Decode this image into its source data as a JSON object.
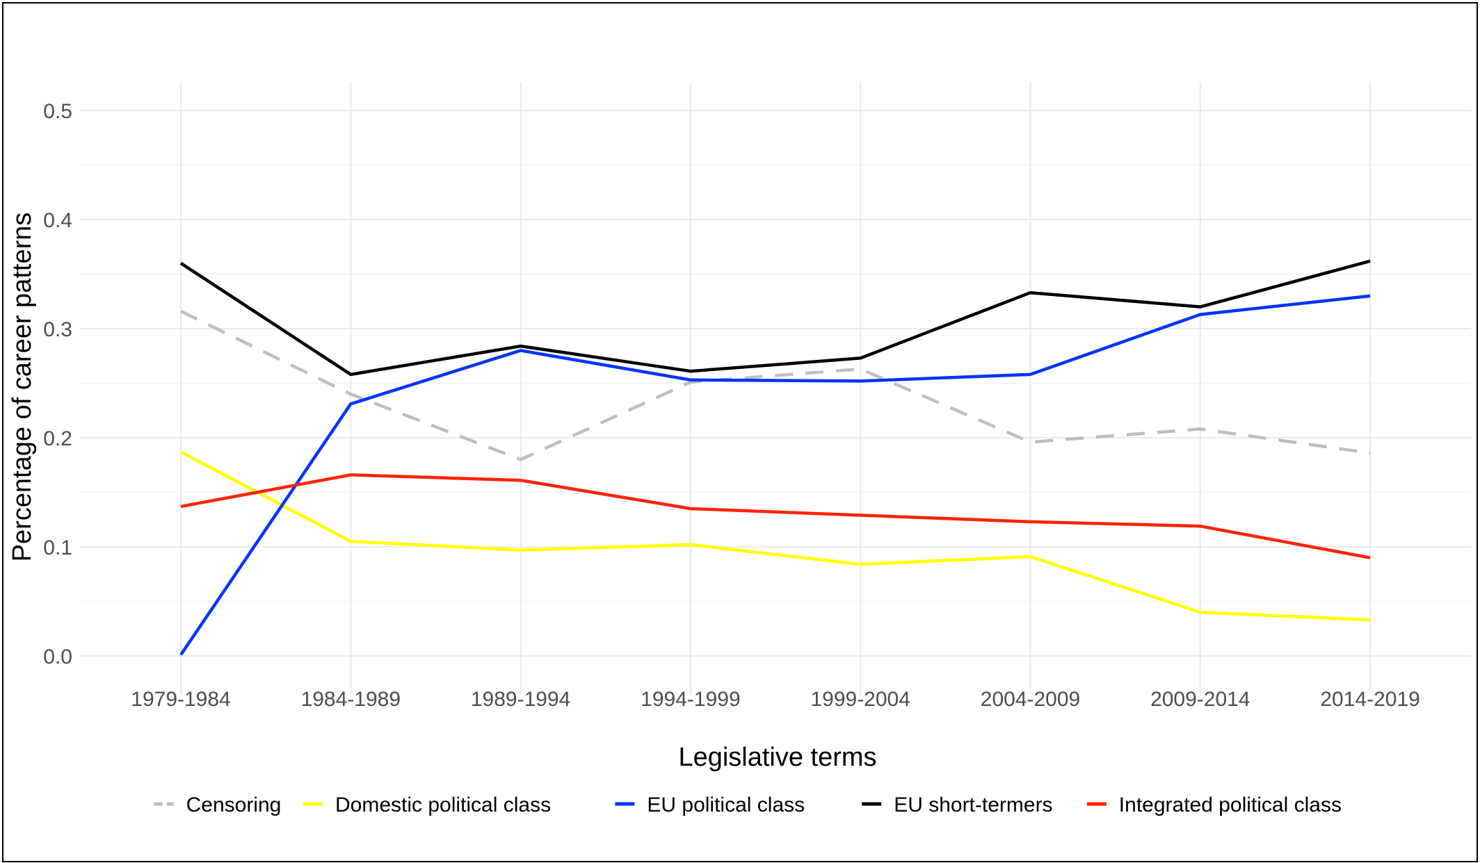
{
  "chart_data": {
    "type": "line",
    "title": "",
    "xlabel": "Legislative terms",
    "ylabel": "Percentage of career patterns",
    "categories": [
      "1979-1984",
      "1984-1989",
      "1989-1994",
      "1994-1999",
      "1999-2004",
      "2004-2009",
      "2009-2014",
      "2014-2019"
    ],
    "ylim": [
      0,
      0.5
    ],
    "yticks": [
      "0.0",
      "0.1",
      "0.2",
      "0.3",
      "0.4",
      "0.5"
    ],
    "grid": true,
    "legend_position": "bottom",
    "series": [
      {
        "name": "Censoring",
        "color": "#bebebe",
        "dashed": true,
        "values": [
          0.316,
          0.24,
          0.18,
          0.251,
          0.263,
          0.196,
          0.208,
          0.186
        ]
      },
      {
        "name": "Domestic political class",
        "color": "#ffff00",
        "dashed": false,
        "values": [
          0.187,
          0.105,
          0.097,
          0.102,
          0.084,
          0.091,
          0.04,
          0.033
        ]
      },
      {
        "name": "EU political class",
        "color": "#0033ff",
        "dashed": false,
        "values": [
          0.001,
          0.231,
          0.28,
          0.253,
          0.252,
          0.258,
          0.313,
          0.33
        ]
      },
      {
        "name": "EU short-termers",
        "color": "#000000",
        "dashed": false,
        "values": [
          0.36,
          0.258,
          0.284,
          0.261,
          0.273,
          0.333,
          0.32,
          0.362
        ]
      },
      {
        "name": "Integrated political class",
        "color": "#ff2200",
        "dashed": false,
        "values": [
          0.137,
          0.166,
          0.161,
          0.135,
          0.129,
          0.123,
          0.119,
          0.09
        ]
      }
    ]
  }
}
